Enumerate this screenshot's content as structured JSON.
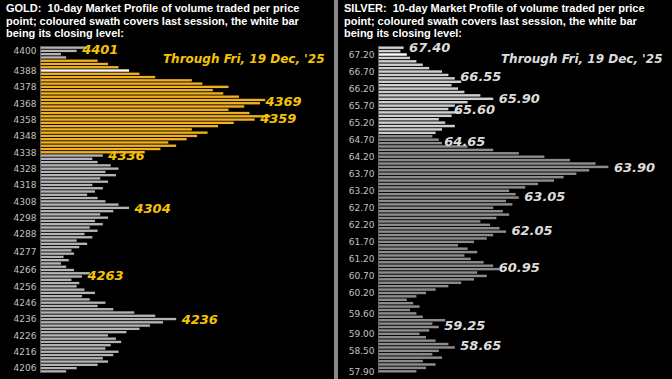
{
  "chart_data": [
    {
      "type": "bar",
      "orientation": "horizontal",
      "title": "GOLD:  10-day Market Profile of volume traded per price point; coloured swath covers last session, the white bar being its closing level:",
      "subtitle": "Through Fri, 19 Dec, '25",
      "categories": [
        4204,
        4206,
        4208,
        4210,
        4212,
        4214,
        4216,
        4218,
        4220,
        4222,
        4224,
        4226,
        4228,
        4230,
        4232,
        4234,
        4236,
        4238,
        4240,
        4242,
        4244,
        4246,
        4248,
        4250,
        4252,
        4254,
        4256,
        4258,
        4260,
        4262,
        4264,
        4266,
        4268,
        4270,
        4272,
        4274,
        4276,
        4278,
        4280,
        4282,
        4284,
        4286,
        4288,
        4290,
        4292,
        4294,
        4296,
        4298,
        4300,
        4302,
        4304,
        4306,
        4308,
        4310,
        4312,
        4314,
        4316,
        4318,
        4320,
        4322,
        4324,
        4326,
        4328,
        4330,
        4332,
        4334,
        4336,
        4338,
        4340,
        4342,
        4344,
        4346,
        4348,
        4350,
        4352,
        4354,
        4356,
        4358,
        4360,
        4362,
        4364,
        4366,
        4368,
        4370,
        4372,
        4374,
        4376,
        4378,
        4380,
        4382,
        4384,
        4386,
        4388,
        4390,
        4392,
        4394,
        4396,
        4398,
        4400,
        4402
      ],
      "values": [
        10,
        14,
        22,
        26,
        24,
        28,
        30,
        25,
        27,
        31,
        29,
        26,
        33,
        38,
        42,
        47,
        52,
        44,
        36,
        28,
        22,
        25,
        19,
        16,
        21,
        17,
        14,
        15,
        12,
        16,
        19,
        13,
        10,
        8,
        11,
        9,
        13,
        12,
        15,
        18,
        14,
        20,
        17,
        22,
        19,
        24,
        21,
        26,
        23,
        28,
        34,
        30,
        25,
        22,
        18,
        21,
        24,
        20,
        26,
        23,
        29,
        25,
        30,
        27,
        22,
        20,
        24,
        40,
        46,
        52,
        49,
        56,
        60,
        64,
        58,
        68,
        74,
        82,
        88,
        80,
        72,
        78,
        84,
        86,
        76,
        70,
        66,
        72,
        62,
        58,
        44,
        38,
        34,
        30,
        26,
        22,
        10,
        8,
        14,
        18
      ],
      "colors": [
        "#b4b4b4",
        "#b4b4b4",
        "#b4b4b4",
        "#b4b4b4",
        "#b4b4b4",
        "#b4b4b4",
        "#b4b4b4",
        "#b4b4b4",
        "#b4b4b4",
        "#b4b4b4",
        "#b4b4b4",
        "#b4b4b4",
        "#b4b4b4",
        "#b4b4b4",
        "#b4b4b4",
        "#b4b4b4",
        "#b4b4b4",
        "#b4b4b4",
        "#b4b4b4",
        "#b4b4b4",
        "#b4b4b4",
        "#b4b4b4",
        "#b4b4b4",
        "#b4b4b4",
        "#b4b4b4",
        "#b4b4b4",
        "#b4b4b4",
        "#b4b4b4",
        "#b4b4b4",
        "#b4b4b4",
        "#b4b4b4",
        "#b4b4b4",
        "#b4b4b4",
        "#b4b4b4",
        "#b4b4b4",
        "#b4b4b4",
        "#b4b4b4",
        "#b4b4b4",
        "#b4b4b4",
        "#b4b4b4",
        "#b4b4b4",
        "#b4b4b4",
        "#b4b4b4",
        "#b4b4b4",
        "#b4b4b4",
        "#b4b4b4",
        "#b4b4b4",
        "#b4b4b4",
        "#b4b4b4",
        "#b4b4b4",
        "#b4b4b4",
        "#b4b4b4",
        "#b4b4b4",
        "#b4b4b4",
        "#b4b4b4",
        "#b4b4b4",
        "#b4b4b4",
        "#b4b4b4",
        "#b4b4b4",
        "#b4b4b4",
        "#b4b4b4",
        "#b4b4b4",
        "#b4b4b4",
        "#b4b4b4",
        "#b4b4b4",
        "#b4b4b4",
        "#b4b4b4",
        "#f0b020",
        "#f0b020",
        "#f0b020",
        "#f0b020",
        "#f0b020",
        "#f0b020",
        "#f0b020",
        "#f0b020",
        "#f0b020",
        "#f0b020",
        "#f0b020",
        "#f0b020",
        "#f0b020",
        "#f0b020",
        "#f0b020",
        "#f0b020",
        "#f0b020",
        "#f0b020",
        "#f0b020",
        "#f0b020",
        "#f0b020",
        "#f0b020",
        "#f0b020",
        "#f0b020",
        "#f0b020",
        "#ffffff",
        "#f0b020",
        "#f0b020",
        "#f0b020",
        "#b4b4b4",
        "#b4b4b4",
        "#b4b4b4",
        "#b4b4b4"
      ],
      "ylim": [
        4203,
        4403
      ],
      "yticks": [
        4400,
        4388,
        4378,
        4368,
        4358,
        4348,
        4338,
        4328,
        4318,
        4308,
        4298,
        4288,
        4277,
        4266,
        4256,
        4246,
        4236,
        4226,
        4216,
        4206
      ],
      "tick_labels": "y",
      "annotations": [
        4401,
        4369,
        4359,
        4336,
        4304,
        4263,
        4236
      ],
      "color": "#f5c400"
    },
    {
      "type": "bar",
      "orientation": "horizontal",
      "title": "SILVER:  10-day Market Profile of volume traded per price point; coloured swath covers last session, the white bar being its closing level:",
      "subtitle": "Through Fri, 19 Dec, '25",
      "categories": [
        57.9,
        58,
        58.1,
        58.2,
        58.3,
        58.4,
        58.5,
        58.6,
        58.7,
        58.8,
        58.9,
        59,
        59.1,
        59.2,
        59.3,
        59.4,
        59.5,
        59.6,
        59.7,
        59.8,
        59.9,
        60,
        60.1,
        60.2,
        60.3,
        60.4,
        60.5,
        60.6,
        60.7,
        60.8,
        60.9,
        61,
        61.1,
        61.2,
        61.3,
        61.4,
        61.5,
        61.6,
        61.7,
        61.8,
        61.9,
        62,
        62.1,
        62.2,
        62.3,
        62.4,
        62.5,
        62.6,
        62.7,
        62.8,
        62.9,
        63,
        63.1,
        63.2,
        63.3,
        63.4,
        63.5,
        63.6,
        63.7,
        63.8,
        63.9,
        64,
        64.1,
        64.2,
        64.3,
        64.4,
        64.5,
        64.6,
        64.7,
        64.8,
        64.9,
        65,
        65.1,
        65.2,
        65.3,
        65.4,
        65.5,
        65.6,
        65.7,
        65.8,
        65.9,
        66,
        66.1,
        66.2,
        66.3,
        66.4,
        66.5,
        66.6,
        66.7,
        66.8,
        66.9,
        67,
        67.1,
        67.2,
        67.3,
        67.4
      ],
      "values": [
        12,
        15,
        18,
        14,
        20,
        17,
        19,
        24,
        22,
        18,
        15,
        13,
        16,
        19,
        17,
        21,
        14,
        12,
        10,
        13,
        11,
        9,
        12,
        15,
        18,
        22,
        26,
        30,
        34,
        31,
        38,
        36,
        33,
        29,
        27,
        31,
        28,
        25,
        30,
        34,
        36,
        40,
        38,
        35,
        32,
        37,
        41,
        39,
        36,
        42,
        40,
        44,
        43,
        41,
        46,
        50,
        55,
        58,
        62,
        66,
        72,
        68,
        60,
        52,
        44,
        36,
        28,
        20,
        19,
        17,
        18,
        20,
        24,
        21,
        19,
        23,
        26,
        22,
        24,
        28,
        36,
        32,
        27,
        25,
        23,
        26,
        24,
        22,
        20,
        16,
        14,
        12,
        10,
        9,
        7,
        8
      ],
      "colors": [
        "#8c8c8c",
        "#8c8c8c",
        "#8c8c8c",
        "#8c8c8c",
        "#8c8c8c",
        "#8c8c8c",
        "#8c8c8c",
        "#8c8c8c",
        "#8c8c8c",
        "#8c8c8c",
        "#8c8c8c",
        "#8c8c8c",
        "#8c8c8c",
        "#8c8c8c",
        "#8c8c8c",
        "#8c8c8c",
        "#8c8c8c",
        "#8c8c8c",
        "#8c8c8c",
        "#8c8c8c",
        "#8c8c8c",
        "#8c8c8c",
        "#8c8c8c",
        "#8c8c8c",
        "#8c8c8c",
        "#8c8c8c",
        "#8c8c8c",
        "#8c8c8c",
        "#8c8c8c",
        "#8c8c8c",
        "#8c8c8c",
        "#8c8c8c",
        "#8c8c8c",
        "#8c8c8c",
        "#8c8c8c",
        "#8c8c8c",
        "#8c8c8c",
        "#8c8c8c",
        "#8c8c8c",
        "#8c8c8c",
        "#8c8c8c",
        "#8c8c8c",
        "#8c8c8c",
        "#8c8c8c",
        "#8c8c8c",
        "#8c8c8c",
        "#8c8c8c",
        "#8c8c8c",
        "#8c8c8c",
        "#8c8c8c",
        "#8c8c8c",
        "#8c8c8c",
        "#8c8c8c",
        "#8c8c8c",
        "#8c8c8c",
        "#8c8c8c",
        "#8c8c8c",
        "#8c8c8c",
        "#8c8c8c",
        "#8c8c8c",
        "#8c8c8c",
        "#8c8c8c",
        "#8c8c8c",
        "#8c8c8c",
        "#8c8c8c",
        "#8c8c8c",
        "#8c8c8c",
        "#8c8c8c",
        "#8c8c8c",
        "#8c8c8c",
        "#cfcfcf",
        "#cfcfcf",
        "#cfcfcf",
        "#cfcfcf",
        "#cfcfcf",
        "#cfcfcf",
        "#cfcfcf",
        "#cfcfcf",
        "#cfcfcf",
        "#cfcfcf",
        "#cfcfcf",
        "#cfcfcf",
        "#cfcfcf",
        "#cfcfcf",
        "#cfcfcf",
        "#cfcfcf",
        "#cfcfcf",
        "#cfcfcf",
        "#cfcfcf",
        "#cfcfcf",
        "#cfcfcf",
        "#cfcfcf",
        "#cfcfcf",
        "#ffffff",
        "#cfcfcf",
        "#cfcfcf"
      ],
      "ylim": [
        57.85,
        67.45
      ],
      "yticks": [
        {
          "value": 67.2,
          "label": "67.20"
        },
        {
          "value": 66.7,
          "label": "66.70"
        },
        {
          "value": 66.2,
          "label": "66.20"
        },
        {
          "value": 65.7,
          "label": "65.70"
        },
        {
          "value": 65.2,
          "label": "65.20"
        },
        {
          "value": 64.7,
          "label": "64.70"
        },
        {
          "value": 64.2,
          "label": "64.20"
        },
        {
          "value": 63.7,
          "label": "63.70"
        },
        {
          "value": 63.2,
          "label": "63.20"
        },
        {
          "value": 62.7,
          "label": "62.70"
        },
        {
          "value": 62.2,
          "label": "62.20"
        },
        {
          "value": 61.7,
          "label": "61.70"
        },
        {
          "value": 61.2,
          "label": "61.20"
        },
        {
          "value": 60.7,
          "label": "60.70"
        },
        {
          "value": 60.2,
          "label": "60.20"
        },
        {
          "value": 59.6,
          "label": "59.60"
        },
        {
          "value": 59,
          "label": "59.00"
        },
        {
          "value": 58.5,
          "label": "58.50"
        },
        {
          "value": 57.9,
          "label": "57.90"
        }
      ],
      "tick_labels": "y",
      "annotations": [
        {
          "value": 67.4,
          "label": "67.40"
        },
        {
          "value": 66.55,
          "label": "66.55"
        },
        {
          "value": 65.9,
          "label": "65.90"
        },
        {
          "value": 65.6,
          "label": "65.60"
        },
        {
          "value": 64.65,
          "label": "64.65"
        },
        {
          "value": 63.9,
          "label": "63.90"
        },
        {
          "value": 63.05,
          "label": "63.05"
        },
        {
          "value": 62.05,
          "label": "62.05"
        },
        {
          "value": 60.95,
          "label": "60.95"
        },
        {
          "value": 59.25,
          "label": "59.25"
        },
        {
          "value": 58.65,
          "label": "58.65"
        }
      ],
      "color": "#dcdcdc"
    }
  ]
}
